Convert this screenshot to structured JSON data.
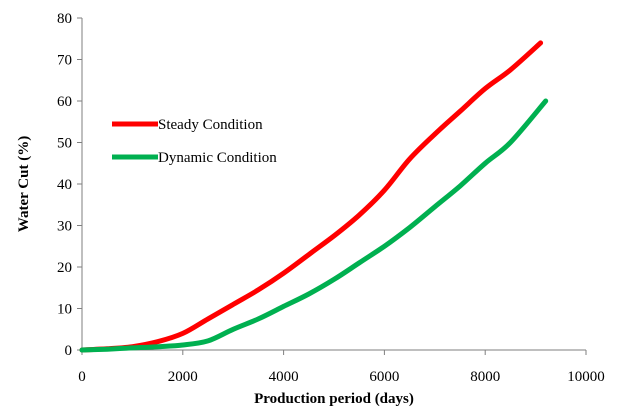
{
  "chart_data": {
    "type": "line",
    "xlabel": "Production period (days)",
    "ylabel": "Water Cut (%)",
    "xlim": [
      0,
      10000
    ],
    "ylim": [
      0,
      80
    ],
    "x_ticks": [
      "0",
      "2000",
      "4000",
      "6000",
      "8000",
      "10000"
    ],
    "y_ticks": [
      "0",
      "10",
      "20",
      "30",
      "40",
      "50",
      "60",
      "70",
      "80"
    ],
    "grid": false,
    "legend": "left, inside plot area",
    "series": [
      {
        "name": "Steady Condition",
        "color": "#ff0000",
        "x": [
          0,
          500,
          1000,
          1500,
          2000,
          2500,
          3000,
          3500,
          4000,
          4500,
          5000,
          5500,
          6000,
          6500,
          7000,
          7500,
          8000,
          8500,
          9100
        ],
        "y": [
          0,
          0.3,
          0.8,
          2,
          4,
          7.5,
          11,
          14.5,
          18.5,
          23,
          27.5,
          32.5,
          38.5,
          46,
          52,
          57.5,
          63,
          67.5,
          74
        ]
      },
      {
        "name": "Dynamic Condition",
        "color": "#00b050",
        "x": [
          0,
          500,
          1000,
          1500,
          2000,
          2500,
          3000,
          3500,
          4000,
          4500,
          5000,
          5500,
          6000,
          6500,
          7000,
          7500,
          8000,
          8500,
          9200
        ],
        "y": [
          0,
          0.2,
          0.5,
          0.8,
          1.2,
          2.2,
          5,
          7.5,
          10.5,
          13.5,
          17,
          21,
          25,
          29.5,
          34.5,
          39.5,
          45,
          50,
          60
        ]
      }
    ]
  }
}
